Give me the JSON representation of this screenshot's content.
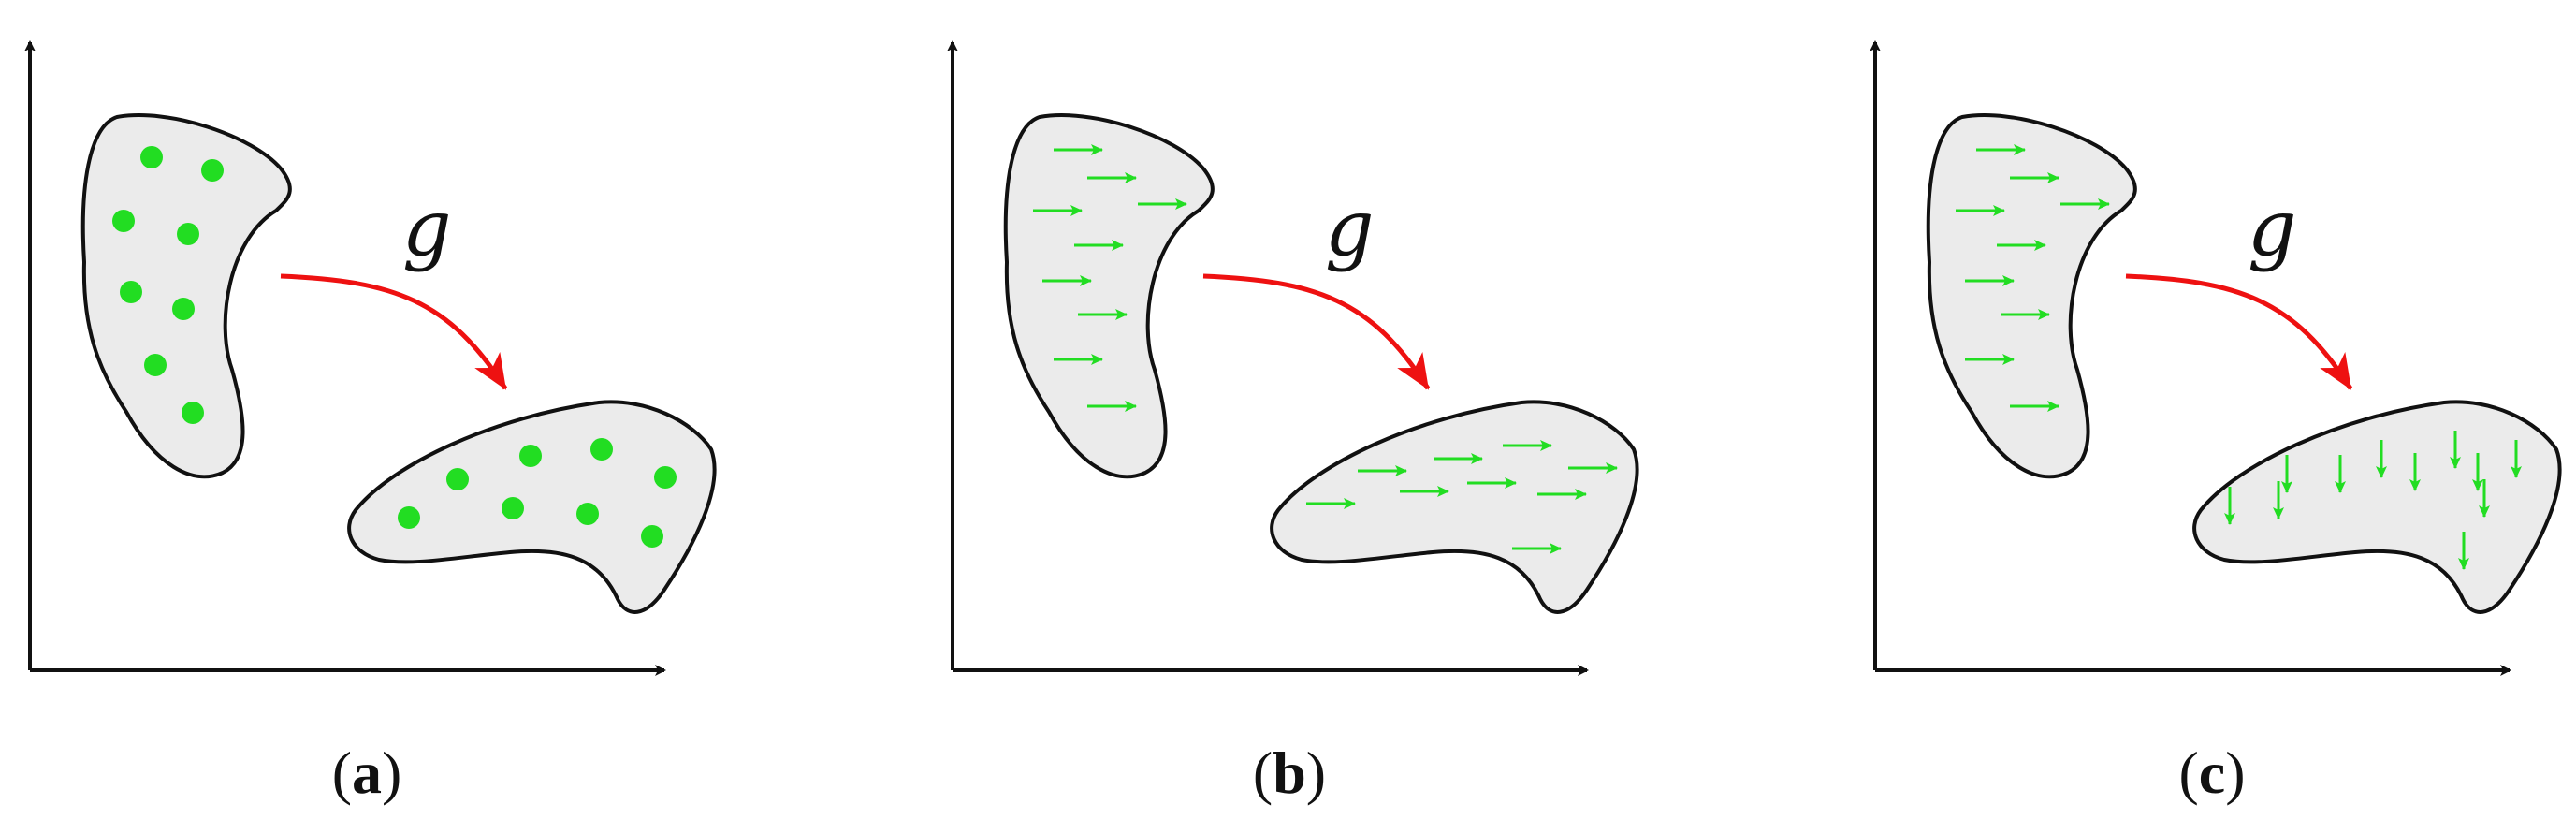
{
  "colors": {
    "blob_fill": "#ebebeb",
    "outline": "#111111",
    "markers": "#22dd22",
    "map_arrow": "#ee1111"
  },
  "map_label": "g",
  "panels": [
    {
      "id": "a",
      "caption_open": "(",
      "caption_letter": "a",
      "caption_close": ")",
      "marker": "dots"
    },
    {
      "id": "b",
      "caption_open": "(",
      "caption_letter": "b",
      "caption_close": ")",
      "marker": "horizontal-arrows"
    },
    {
      "id": "c",
      "caption_open": "(",
      "caption_letter": "c",
      "caption_close": ")",
      "marker": "horizontal-arrows-to-vertical-arrows"
    }
  ]
}
